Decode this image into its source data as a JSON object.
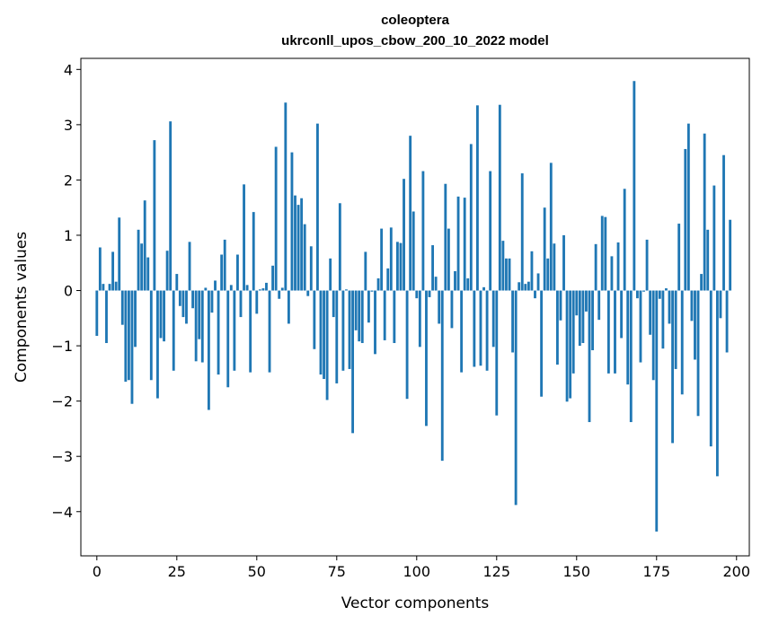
{
  "chart_data": {
    "type": "bar",
    "title": "coleoptera",
    "subtitle": "ukrconll_upos_cbow_200_10_2022 model",
    "xlabel": "Vector components",
    "ylabel": "Components values",
    "xlim": [
      -5,
      204
    ],
    "ylim": [
      -4.8,
      4.2
    ],
    "xticks": [
      0,
      25,
      50,
      75,
      100,
      125,
      150,
      175,
      200
    ],
    "yticks": [
      -4,
      -3,
      -2,
      -1,
      0,
      1,
      2,
      3,
      4
    ],
    "bar_color": "#1f77b4",
    "values": [
      -0.82,
      0.78,
      0.12,
      -0.95,
      0.12,
      0.7,
      0.16,
      1.32,
      -0.62,
      -1.65,
      -1.62,
      -2.05,
      -1.02,
      1.1,
      0.85,
      1.63,
      0.6,
      -1.62,
      2.72,
      -1.95,
      -0.86,
      -0.92,
      0.72,
      3.06,
      -1.45,
      0.3,
      -0.28,
      -0.48,
      -0.6,
      0.88,
      -0.32,
      -1.28,
      -0.88,
      -1.3,
      0.05,
      -2.16,
      -0.4,
      0.18,
      -1.52,
      0.65,
      0.92,
      -1.75,
      0.1,
      -1.45,
      0.65,
      -0.48,
      1.92,
      0.1,
      -1.48,
      1.42,
      -0.42,
      0.02,
      0.04,
      0.14,
      -1.48,
      0.45,
      2.6,
      -0.15,
      0.05,
      3.4,
      -0.6,
      2.5,
      1.72,
      1.55,
      1.67,
      1.2,
      -0.1,
      0.8,
      -1.06,
      3.02,
      -1.52,
      -1.6,
      -1.98,
      0.58,
      -0.48,
      -1.68,
      1.58,
      -1.45,
      0.02,
      -1.42,
      -2.58,
      -0.72,
      -0.92,
      -0.95,
      0.7,
      -0.58,
      -0.02,
      -1.15,
      0.22,
      1.12,
      -0.9,
      0.4,
      1.14,
      -0.95,
      0.88,
      0.86,
      2.02,
      -1.96,
      2.8,
      1.43,
      -0.14,
      -1.02,
      2.16,
      -2.45,
      -0.12,
      0.82,
      0.25,
      -0.6,
      -3.08,
      1.93,
      1.12,
      -0.68,
      0.35,
      1.7,
      -1.48,
      1.68,
      0.22,
      2.65,
      -1.38,
      3.35,
      -1.36,
      0.06,
      -1.45,
      2.16,
      -1.02,
      -2.26,
      3.36,
      0.9,
      0.58,
      0.58,
      -1.12,
      -3.88,
      0.15,
      2.12,
      0.12,
      0.16,
      0.71,
      -0.14,
      0.31,
      -1.92,
      1.5,
      0.58,
      2.31,
      0.85,
      -1.34,
      -0.54,
      1.0,
      -2.01,
      -1.95,
      -1.5,
      -0.45,
      -1.0,
      -0.95,
      -0.38,
      -2.38,
      -1.08,
      0.84,
      -0.53,
      1.35,
      1.33,
      -1.5,
      0.62,
      -1.5,
      0.87,
      -0.86,
      1.84,
      -1.7,
      -2.38,
      3.79,
      -0.14,
      -1.3,
      -0.02,
      0.92,
      -0.8,
      -1.62,
      -4.36,
      -0.15,
      -1.05,
      0.04,
      -0.6,
      -2.76,
      -1.42,
      1.21,
      -1.88,
      2.56,
      3.02,
      -0.55,
      -1.25,
      -2.27,
      0.3,
      2.84,
      1.1,
      -2.82,
      1.9,
      -3.36,
      -0.5,
      2.45,
      -1.12,
      1.28
    ]
  }
}
